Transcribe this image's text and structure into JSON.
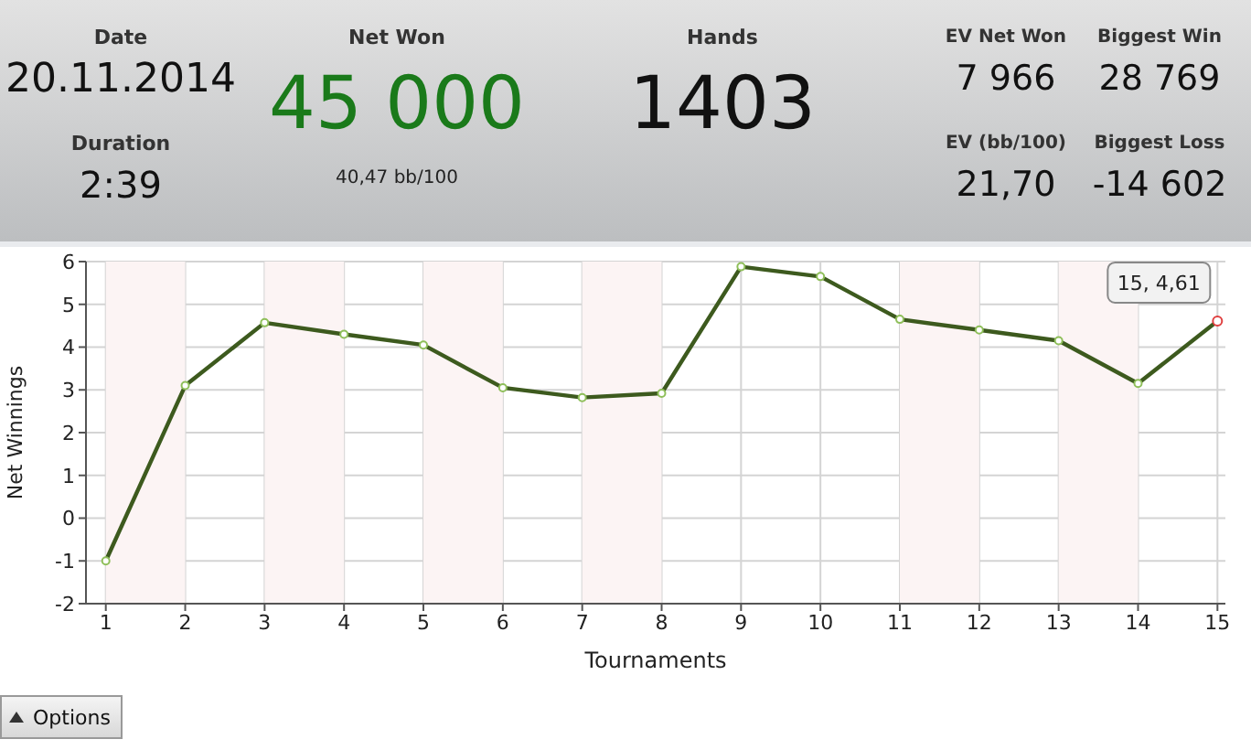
{
  "chart_data": [
    {
      "type": "other",
      "annotations": [
        "Date",
        "20.11.2014",
        "Duration",
        "2:39",
        "Net Won",
        "45 000",
        "40,47 bb/100",
        "Hands",
        "1403",
        "EV Net Won",
        "7 966",
        "Biggest Win",
        "28 769",
        "EV (bb/100)",
        "21,70",
        "Biggest Loss",
        "-14 602"
      ]
    },
    {
      "type": "line",
      "xlabel": "Tournaments",
      "ylabel": "Net Winnings",
      "x": [
        1,
        2,
        3,
        4,
        5,
        6,
        7,
        8,
        9,
        10,
        11,
        12,
        13,
        14,
        15
      ],
      "series": [
        {
          "color": "#3d5a1e",
          "values": [
            -1.0,
            3.1,
            4.57,
            4.3,
            4.05,
            3.05,
            2.82,
            2.92,
            5.88,
            5.65,
            4.65,
            4.4,
            4.15,
            3.15,
            4.61
          ]
        }
      ],
      "xlim": [
        0.75,
        15.1
      ],
      "xticks": [
        1,
        2,
        3,
        4,
        5,
        6,
        7,
        8,
        9,
        10,
        11,
        12,
        13,
        14,
        15
      ],
      "ylim": [
        -2,
        6
      ],
      "yticks": [
        -2,
        -1,
        0,
        1,
        2,
        3,
        4,
        5,
        6
      ],
      "grid": true,
      "marker": "circle",
      "line_style": "solid",
      "bands": [
        {
          "axis": "x",
          "from": 1,
          "to": 2,
          "color": "#fcf4f4"
        },
        {
          "axis": "x",
          "from": 3,
          "to": 4,
          "color": "#fcf4f4"
        },
        {
          "axis": "x",
          "from": 5,
          "to": 6,
          "color": "#fcf4f4"
        },
        {
          "axis": "x",
          "from": 7,
          "to": 8,
          "color": "#fcf4f4"
        },
        {
          "axis": "x",
          "from": 11,
          "to": 12,
          "color": "#fcf4f4"
        },
        {
          "axis": "x",
          "from": 13,
          "to": 14,
          "color": "#fcf4f4"
        }
      ],
      "annotations": [
        {
          "text": "15, 4,61",
          "x": 15,
          "y": 4.61
        },
        "Options"
      ]
    }
  ]
}
